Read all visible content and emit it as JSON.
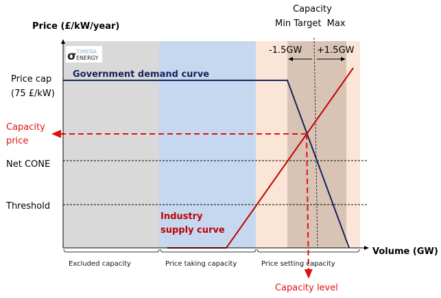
{
  "y_axis_title": "Price (£/kW/year)",
  "x_axis_title": "Volume (GW)",
  "logo": {
    "line1": "TIMERA",
    "line2": "ENERGY"
  },
  "y_labels": {
    "price_cap_1": "Price cap",
    "price_cap_2": "(75 £/kW)",
    "capacity_price_1": "Capacity",
    "capacity_price_2": "price",
    "net_cone": "Net CONE",
    "threshold": "Threshold"
  },
  "capacity_header": {
    "title": "Capacity",
    "sub": "Min Target  Max"
  },
  "band_labels": {
    "minus": "-1.5GW",
    "plus": "+1.5GW"
  },
  "curves": {
    "demand": "Government demand curve",
    "supply_1": "Industry",
    "supply_2": "supply curve"
  },
  "regions": [
    "Excluded capacity",
    "Price taking capacity",
    "Price setting capacity"
  ],
  "capacity_level": "Capacity level",
  "colors": {
    "excluded": "#d9d9d9",
    "taking": "#c5d8ef",
    "setting": "#fbe5d6",
    "band": "#d9c3b5",
    "demand": "#12235a",
    "supply": "#c00000",
    "result": "#e01010"
  }
}
